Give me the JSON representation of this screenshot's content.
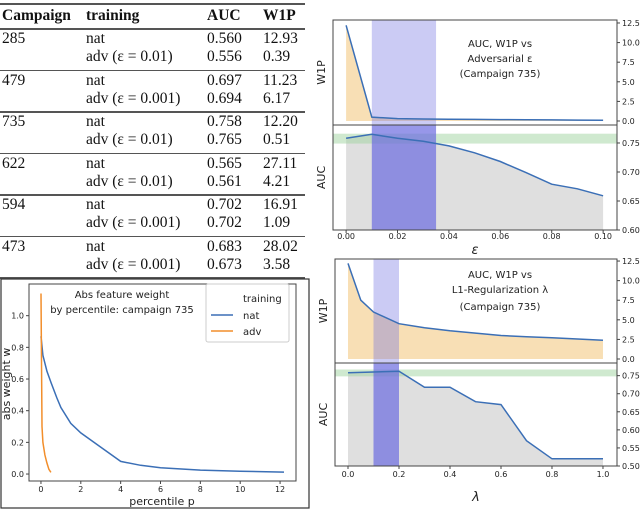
{
  "table": {
    "headers": [
      "Campaign",
      "training",
      "AUC",
      "W1P"
    ],
    "groups": [
      {
        "campaign": "285",
        "rows": [
          {
            "training": "nat",
            "auc": "0.560",
            "w1p": "12.93"
          },
          {
            "training": "adv (ε = 0.01)",
            "auc": "0.556",
            "w1p": "0.39"
          }
        ]
      },
      {
        "campaign": "479",
        "rows": [
          {
            "training": "nat",
            "auc": "0.697",
            "w1p": "11.23"
          },
          {
            "training": "adv (ε = 0.001)",
            "auc": "0.694",
            "w1p": "6.17"
          }
        ]
      },
      {
        "campaign": "735",
        "rows": [
          {
            "training": "nat",
            "auc": "0.758",
            "w1p": "12.20"
          },
          {
            "training": "adv (ε = 0.01)",
            "auc": "0.765",
            "w1p": "0.51"
          }
        ]
      },
      {
        "campaign": "622",
        "rows": [
          {
            "training": "nat",
            "auc": "0.565",
            "w1p": "27.11"
          },
          {
            "training": "adv (ε = 0.01)",
            "auc": "0.561",
            "w1p": "4.21"
          }
        ]
      },
      {
        "campaign": "594",
        "rows": [
          {
            "training": "nat",
            "auc": "0.702",
            "w1p": "16.91"
          },
          {
            "training": "adv (ε = 0.001)",
            "auc": "0.702",
            "w1p": "1.09"
          }
        ]
      },
      {
        "campaign": "473",
        "rows": [
          {
            "training": "nat",
            "auc": "0.683",
            "w1p": "28.02"
          },
          {
            "training": "adv (ε = 0.001)",
            "auc": "0.673",
            "w1p": "3.58"
          }
        ]
      }
    ]
  },
  "chart_data": [
    {
      "type": "line",
      "title": [
        "Abs feature weight",
        "by percentile: campaign 735"
      ],
      "xlabel": "percentile p",
      "ylabel": "abs weight w",
      "xlim": [
        -0.6,
        12.8
      ],
      "ylim": [
        -0.044,
        1.2
      ],
      "xticks": [
        0,
        2,
        4,
        6,
        8,
        10,
        12
      ],
      "xtick_labels": [
        "0",
        "2",
        "4",
        "6",
        "8",
        "10",
        "12"
      ],
      "yticks": [
        0,
        0.2,
        0.4,
        0.6,
        0.8,
        1.0
      ],
      "ytick_labels": [
        "0.0",
        "0.2",
        "0.4",
        "0.6",
        "0.8",
        "1.0"
      ],
      "legend": {
        "title": "training",
        "placement": "top-right"
      },
      "series": [
        {
          "name": "nat",
          "color": "#3b6fb6",
          "x": [
            0,
            0.1,
            0.3,
            0.5,
            0.8,
            1,
            1.5,
            2,
            3,
            4,
            5,
            6,
            8,
            10,
            12.2
          ],
          "y": [
            0.87,
            0.75,
            0.65,
            0.58,
            0.48,
            0.42,
            0.32,
            0.26,
            0.17,
            0.08,
            0.055,
            0.04,
            0.025,
            0.018,
            0.012
          ]
        },
        {
          "name": "adv",
          "color": "#f28e2b",
          "x": [
            0,
            0.02,
            0.05,
            0.1,
            0.2,
            0.3,
            0.4,
            0.5
          ],
          "y": [
            1.14,
            0.8,
            0.3,
            0.2,
            0.12,
            0.07,
            0.03,
            0.01
          ]
        }
      ]
    },
    {
      "type": "area",
      "title": [
        "AUC, W1P vs",
        "Adversarial ε",
        "(Campaign 735)"
      ],
      "xlabel": "ε",
      "xlim": [
        -0.0051,
        0.1054
      ],
      "xticks": [
        0,
        0.02,
        0.04,
        0.06,
        0.08,
        0.1
      ],
      "xtick_labels": [
        "0.00",
        "0.02",
        "0.04",
        "0.06",
        "0.08",
        "0.10"
      ],
      "highlight_x": [
        0.01,
        0.035
      ],
      "highlight_color": "#6b6be0",
      "panels": [
        {
          "ylabel": "W1P",
          "ylim": [
            -0.51,
            12.88
          ],
          "yticks": [
            0,
            2.5,
            5,
            7.5,
            10,
            12.5
          ],
          "ytick_labels": [
            "0.0",
            "2.5",
            "5.0",
            "7.5",
            "10.0",
            "12.5"
          ],
          "fill": "#f7d9a8",
          "x": [
            0,
            0.01,
            0.02,
            0.03,
            0.04,
            0.05,
            0.06,
            0.07,
            0.08,
            0.09,
            0.1
          ],
          "y": [
            12.2,
            0.5,
            0.3,
            0.25,
            0.22,
            0.2,
            0.18,
            0.16,
            0.14,
            0.12,
            0.1
          ]
        },
        {
          "ylabel": "AUC",
          "ylim": [
            0.6,
            0.781
          ],
          "yticks": [
            0.6,
            0.65,
            0.7,
            0.75
          ],
          "ytick_labels": [
            "0.60",
            "0.65",
            "0.70",
            "0.75"
          ],
          "fill": "#d9d9d9",
          "band_y": [
            0.749,
            0.766
          ],
          "x": [
            0,
            0.01,
            0.02,
            0.03,
            0.04,
            0.05,
            0.06,
            0.07,
            0.08,
            0.09,
            0.1
          ],
          "y": [
            0.758,
            0.765,
            0.758,
            0.753,
            0.745,
            0.733,
            0.718,
            0.699,
            0.679,
            0.671,
            0.659
          ]
        }
      ]
    },
    {
      "type": "area",
      "title": [
        "AUC, W1P vs",
        "L1-Regularization λ",
        "(Campaign 735)"
      ],
      "xlabel": "λ",
      "xlim": [
        -0.051,
        1.055
      ],
      "xticks": [
        0,
        0.2,
        0.4,
        0.6,
        0.8,
        1.0
      ],
      "xtick_labels": [
        "0.0",
        "0.2",
        "0.4",
        "0.6",
        "0.8",
        "1.0"
      ],
      "highlight_x": [
        0.1,
        0.2
      ],
      "highlight_color": "#6b6be0",
      "panels": [
        {
          "ylabel": "W1P",
          "ylim": [
            -0.51,
            12.76
          ],
          "yticks": [
            0,
            2.5,
            5,
            7.5,
            10,
            12.5
          ],
          "ytick_labels": [
            "0.0",
            "2.5",
            "5.0",
            "7.5",
            "10.0",
            "12.5"
          ],
          "fill": "#f7d9a8",
          "x": [
            0,
            0.05,
            0.1,
            0.2,
            0.3,
            0.4,
            0.5,
            0.6,
            0.7,
            0.8,
            0.9,
            1.0
          ],
          "y": [
            12.2,
            7.5,
            6.0,
            4.5,
            4.0,
            3.6,
            3.3,
            3.0,
            2.85,
            2.7,
            2.55,
            2.4
          ]
        },
        {
          "ylabel": "AUC",
          "ylim": [
            0.5,
            0.785
          ],
          "yticks": [
            0.5,
            0.55,
            0.6,
            0.65,
            0.7,
            0.75
          ],
          "ytick_labels": [
            "0.50",
            "0.55",
            "0.60",
            "0.65",
            "0.70",
            "0.75"
          ],
          "fill": "#d9d9d9",
          "band_y": [
            0.748,
            0.767
          ],
          "x": [
            0,
            0.1,
            0.2,
            0.3,
            0.4,
            0.5,
            0.6,
            0.7,
            0.8,
            0.9,
            1.0
          ],
          "y": [
            0.758,
            0.76,
            0.762,
            0.718,
            0.718,
            0.678,
            0.67,
            0.57,
            0.52,
            0.52,
            0.52
          ]
        }
      ]
    }
  ]
}
